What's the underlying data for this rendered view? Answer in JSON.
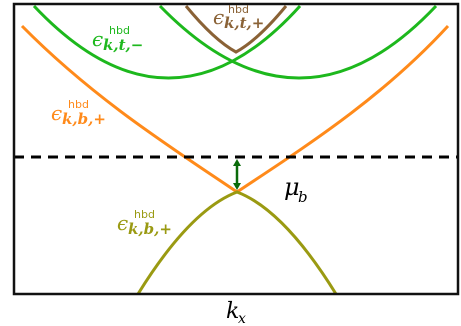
{
  "diagram": {
    "x_axis_label": {
      "symbol": "k",
      "subscript": "x"
    },
    "chemical_potential_label": {
      "symbol": "μ",
      "subscript": "b"
    },
    "bands": [
      {
        "id": "top-minus",
        "symbol": "ϵ",
        "superscript": "hbd",
        "subscript": "k,t,−",
        "color": "#1db81d"
      },
      {
        "id": "top-plus",
        "symbol": "ϵ",
        "superscript": "hbd",
        "subscript": "k,t,+",
        "color": "#8a6236"
      },
      {
        "id": "bottom-plus-upper",
        "symbol": "ϵ",
        "superscript": "hbd",
        "subscript": "k,b,+",
        "color": "#ff8a1a"
      },
      {
        "id": "bottom-plus-lower",
        "symbol": "ϵ",
        "superscript": "hbd",
        "subscript": "k,b,+",
        "color": "#9a9a12"
      }
    ],
    "colors": {
      "frame": "#111111",
      "dashed_line": "#000000",
      "arrow": "#0a6b0a"
    }
  }
}
